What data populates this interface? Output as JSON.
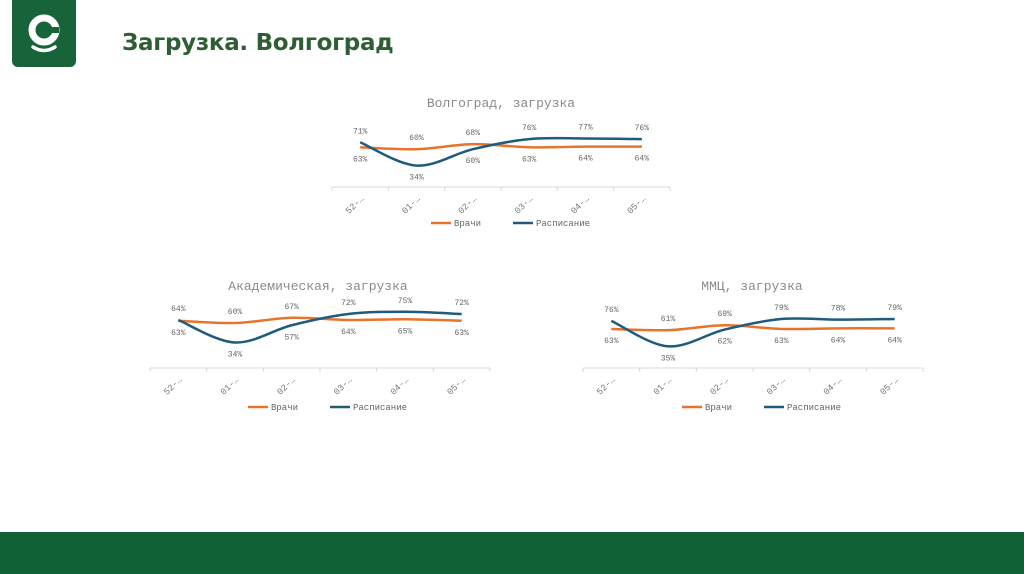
{
  "slide": {
    "title": "Загрузка. Волгоград"
  },
  "colors": {
    "brand": "#17633a",
    "Врачи": "#e8742c",
    "Расписание": "#1f5b7d"
  },
  "chart_data": [
    {
      "type": "line",
      "title": "Волгоград, загрузка",
      "categories": [
        "52-…",
        "01-…",
        "02-…",
        "03-…",
        "04-…",
        "05-…"
      ],
      "series": [
        {
          "name": "Врачи",
          "values": [
            63,
            60,
            68,
            63,
            64,
            64
          ]
        },
        {
          "name": "Расписание",
          "values": [
            71,
            34,
            60,
            76,
            77,
            76
          ]
        }
      ],
      "ylim": [
        0,
        100
      ],
      "grid": false,
      "legend": "bottom",
      "value_format": "percent",
      "smooth": true
    },
    {
      "type": "line",
      "title": "Академическая, загрузка",
      "categories": [
        "52-…",
        "01-…",
        "02-…",
        "03-…",
        "04-…",
        "05-…"
      ],
      "series": [
        {
          "name": "Врачи",
          "values": [
            63,
            60,
            67,
            64,
            65,
            63
          ]
        },
        {
          "name": "Расписание",
          "values": [
            64,
            34,
            57,
            72,
            75,
            72
          ]
        }
      ],
      "ylim": [
        0,
        100
      ],
      "grid": false,
      "legend": "bottom",
      "value_format": "percent",
      "smooth": true
    },
    {
      "type": "line",
      "title": "ММЦ, загрузка",
      "categories": [
        "52-…",
        "01-…",
        "02-…",
        "03-…",
        "04-…",
        "05-…"
      ],
      "series": [
        {
          "name": "Врачи",
          "values": [
            63,
            61,
            69,
            63,
            64,
            64
          ]
        },
        {
          "name": "Расписание",
          "values": [
            76,
            35,
            62,
            79,
            78,
            79
          ]
        }
      ],
      "ylim": [
        0,
        100
      ],
      "grid": false,
      "legend": "bottom",
      "value_format": "percent",
      "smooth": true
    }
  ]
}
